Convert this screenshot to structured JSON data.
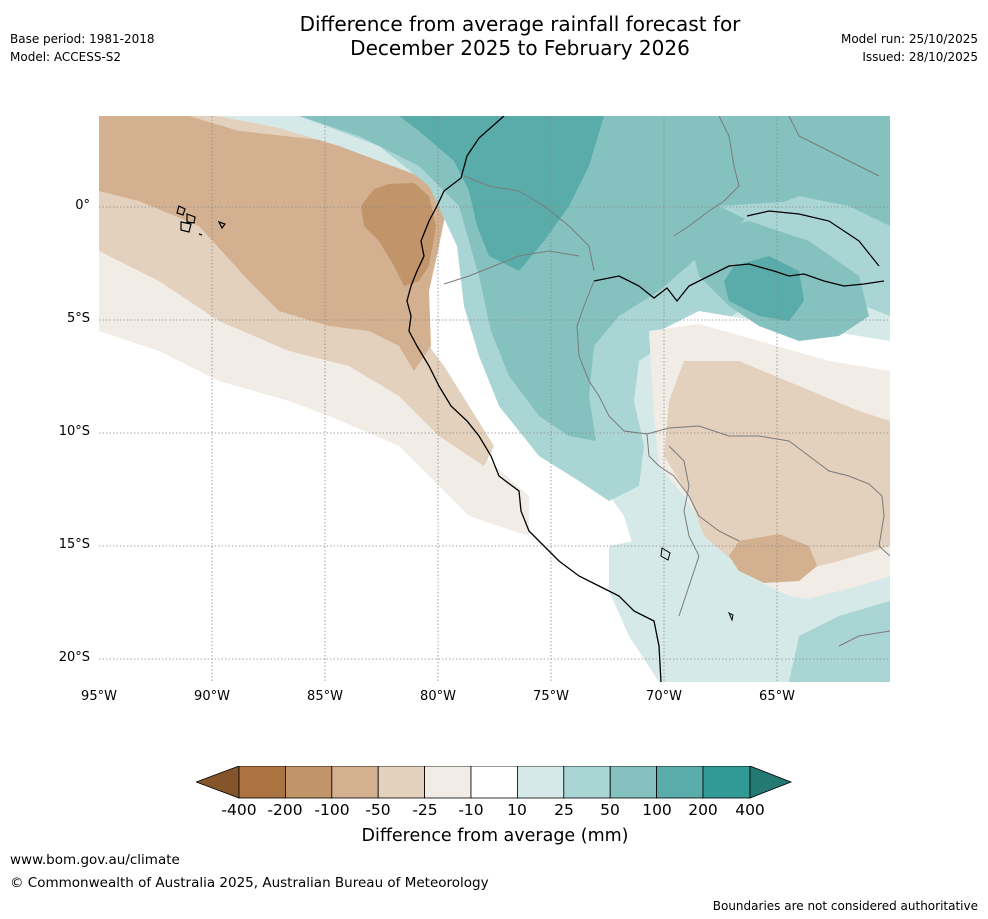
{
  "header": {
    "title_line1": "Difference from average rainfall forecast for",
    "title_line2": "December 2025 to February 2026",
    "base_period": "Base period: 1981-2018",
    "model": "Model: ACCESS-S2",
    "model_run": "Model run: 25/10/2025",
    "issued": "Issued: 28/10/2025"
  },
  "map": {
    "latitude_labels": [
      "0°",
      "5°S",
      "10°S",
      "15°S",
      "20°S"
    ],
    "longitude_labels": [
      "95°W",
      "90°W",
      "85°W",
      "80°W",
      "75°W",
      "70°W",
      "65°W"
    ],
    "extent": {
      "lon": [
        -95,
        -60
      ],
      "lat": [
        -21,
        4
      ]
    }
  },
  "colorbar": {
    "title": "Difference from average (mm)",
    "tick_labels": [
      "-400",
      "-200",
      "-100",
      "-50",
      "-25",
      "-10",
      "10",
      "25",
      "50",
      "100",
      "200",
      "400"
    ],
    "colors": [
      "#84542a",
      "#ab7341",
      "#c29469",
      "#d3b08f",
      "#e3d0bd",
      "#f2ece6",
      "#ffffff",
      "#d5e9e8",
      "#a9d5d4",
      "#84c1bf",
      "#5aacaa",
      "#319a96",
      "#237a75"
    ]
  },
  "footer": {
    "website": "www.bom.gov.au/climate",
    "copyright": "© Commonwealth of Australia 2025, Australian Bureau of Meteorology",
    "disclaimer": "Boundaries are not considered authoritative"
  }
}
